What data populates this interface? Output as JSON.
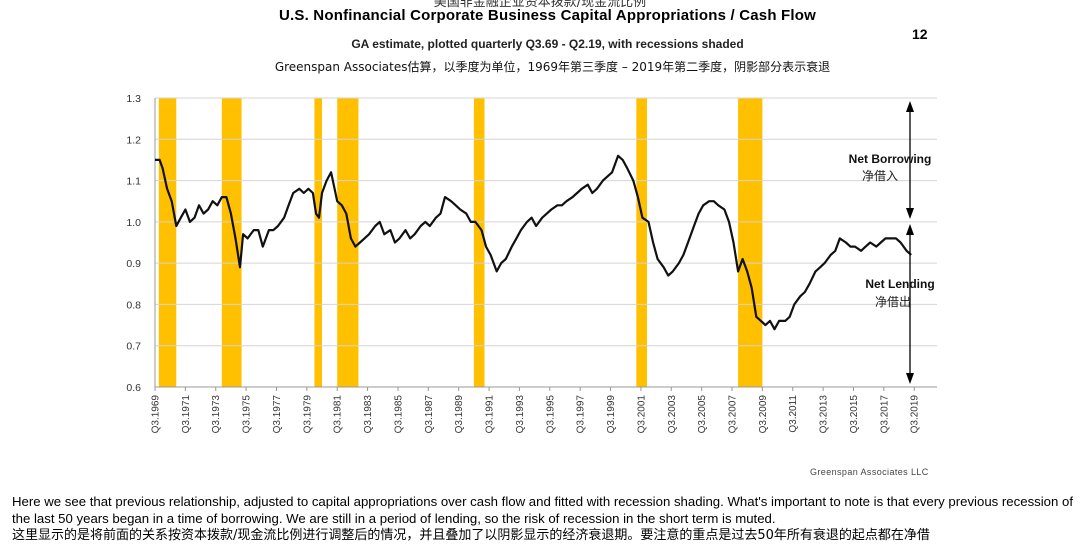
{
  "header": {
    "cn_title": "美国非金融企业资本拨款/现金流比例",
    "page_number": "12"
  },
  "footer": {
    "credit": "Greenspan Associates LLC",
    "caption": "Here we see that previous relationship, adjusted to capital appropriations over cash flow and fitted with recession shading. What's important to note is that every previous recession of the last 50 years began in a time of borrowing. We are still in a period of lending, so the risk of recession in the short term is muted.",
    "caption_cn": "这里显示的是将前面的关系按资本拨款/现金流比例进行调整后的情况，并且叠加了以阴影显示的经济衰退期。要注意的重点是过去50年所有衰退的起点都在净借"
  },
  "chart_data": {
    "type": "line",
    "title": "U.S. Nonfinancial Corporate Business Capital Appropriations / Cash Flow",
    "subtitle": "GA estimate, plotted quarterly Q3.69 - Q2.19, with recessions shaded",
    "subtitle_cn": "Greenspan Associates估算，以季度为单位，1969年第三季度 – 2019年第二季度，阴影部分表示衰退",
    "ylim": [
      0.6,
      1.3
    ],
    "yticks": [
      "0.6",
      "0.7",
      "0.8",
      "0.9",
      "1.0",
      "1.1",
      "1.2",
      "1.3"
    ],
    "xlim": [
      1969.5,
      2021.0
    ],
    "xticks": [
      "Q3.1969",
      "Q3.1971",
      "Q3.1973",
      "Q3.1975",
      "Q3.1977",
      "Q3.1979",
      "Q3.1981",
      "Q3.1983",
      "Q3.1985",
      "Q3.1987",
      "Q3.1989",
      "Q3.1991",
      "Q3.1993",
      "Q3.1995",
      "Q3.1997",
      "Q3.1999",
      "Q3.2001",
      "Q3.2003",
      "Q3.2005",
      "Q3.2007",
      "Q3.2009",
      "Q3.2011",
      "Q3.2013",
      "Q3.2015",
      "Q3.2017",
      "Q3.2019"
    ],
    "grid": true,
    "line_color": "#111111",
    "recession_color": "#FFC000",
    "recessions": [
      [
        1969.75,
        1970.9
      ],
      [
        1973.9,
        1975.2
      ],
      [
        1980.0,
        1980.5
      ],
      [
        1981.5,
        1982.9
      ],
      [
        1990.5,
        1991.2
      ],
      [
        2001.2,
        2001.9
      ],
      [
        2007.9,
        2009.5
      ]
    ],
    "annotations": {
      "net_borrowing": "Net Borrowing",
      "net_borrowing_cn": "净借入",
      "net_lending": "Net Lending",
      "net_lending_cn": "净借出"
    },
    "series": [
      {
        "x": [
          1969.5,
          1969.8,
          1970.0,
          1970.3,
          1970.6,
          1970.9,
          1971.2,
          1971.5,
          1971.8,
          1972.1,
          1972.4,
          1972.7,
          1973.0,
          1973.3,
          1973.6,
          1973.9,
          1974.2,
          1974.5,
          1974.8,
          1975.1,
          1975.3,
          1975.6,
          1976.0,
          1976.3,
          1976.6,
          1977.0,
          1977.3,
          1977.6,
          1978.0,
          1978.3,
          1978.6,
          1979.0,
          1979.3,
          1979.6,
          1979.9,
          1980.1,
          1980.3,
          1980.5,
          1980.8,
          1981.1,
          1981.5,
          1981.8,
          1982.1,
          1982.4,
          1982.7,
          1983.0,
          1983.3,
          1983.6,
          1984.0,
          1984.3,
          1984.6,
          1985.0,
          1985.3,
          1985.6,
          1986.0,
          1986.3,
          1986.6,
          1987.0,
          1987.3,
          1987.6,
          1988.0,
          1988.3,
          1988.6,
          1989.0,
          1989.3,
          1989.6,
          1990.0,
          1990.3,
          1990.6,
          1991.0,
          1991.3,
          1991.6,
          1992.0,
          1992.3,
          1992.6,
          1993.0,
          1993.3,
          1993.6,
          1994.0,
          1994.3,
          1994.6,
          1995.0,
          1995.3,
          1995.6,
          1996.0,
          1996.3,
          1996.6,
          1997.0,
          1997.3,
          1997.6,
          1998.0,
          1998.3,
          1998.6,
          1999.0,
          1999.3,
          1999.6,
          2000.0,
          2000.3,
          2000.6,
          2001.0,
          2001.3,
          2001.6,
          2002.0,
          2002.3,
          2002.6,
          2003.0,
          2003.3,
          2003.6,
          2004.0,
          2004.3,
          2004.6,
          2005.0,
          2005.3,
          2005.6,
          2006.0,
          2006.3,
          2006.6,
          2007.0,
          2007.3,
          2007.6,
          2007.9,
          2008.2,
          2008.5,
          2008.8,
          2009.1,
          2009.4,
          2009.7,
          2010.0,
          2010.3,
          2010.6,
          2011.0,
          2011.3,
          2011.6,
          2012.0,
          2012.3,
          2012.6,
          2013.0,
          2013.3,
          2013.6,
          2014.0,
          2014.3,
          2014.6,
          2015.0,
          2015.3,
          2015.6,
          2016.0,
          2016.3,
          2016.6,
          2017.0,
          2017.3,
          2017.6,
          2018.0,
          2018.3,
          2018.6,
          2019.0,
          2019.3
        ],
        "values": [
          1.15,
          1.15,
          1.13,
          1.08,
          1.05,
          0.99,
          1.01,
          1.03,
          1.0,
          1.01,
          1.04,
          1.02,
          1.03,
          1.05,
          1.04,
          1.06,
          1.06,
          1.02,
          0.96,
          0.89,
          0.97,
          0.96,
          0.98,
          0.98,
          0.94,
          0.98,
          0.98,
          0.99,
          1.01,
          1.04,
          1.07,
          1.08,
          1.07,
          1.08,
          1.07,
          1.02,
          1.01,
          1.07,
          1.1,
          1.12,
          1.05,
          1.04,
          1.02,
          0.96,
          0.94,
          0.95,
          0.96,
          0.97,
          0.99,
          1.0,
          0.97,
          0.98,
          0.95,
          0.96,
          0.98,
          0.96,
          0.97,
          0.99,
          1.0,
          0.99,
          1.01,
          1.02,
          1.06,
          1.05,
          1.04,
          1.03,
          1.02,
          1.0,
          1.0,
          0.98,
          0.94,
          0.92,
          0.88,
          0.9,
          0.91,
          0.94,
          0.96,
          0.98,
          1.0,
          1.01,
          0.99,
          1.01,
          1.02,
          1.03,
          1.04,
          1.04,
          1.05,
          1.06,
          1.07,
          1.08,
          1.09,
          1.07,
          1.08,
          1.1,
          1.11,
          1.12,
          1.16,
          1.15,
          1.13,
          1.1,
          1.06,
          1.01,
          1.0,
          0.95,
          0.91,
          0.89,
          0.87,
          0.88,
          0.9,
          0.92,
          0.95,
          0.99,
          1.02,
          1.04,
          1.05,
          1.05,
          1.04,
          1.03,
          1.0,
          0.95,
          0.88,
          0.91,
          0.88,
          0.84,
          0.77,
          0.76,
          0.75,
          0.76,
          0.74,
          0.76,
          0.76,
          0.77,
          0.8,
          0.82,
          0.83,
          0.85,
          0.88,
          0.89,
          0.9,
          0.92,
          0.93,
          0.96,
          0.95,
          0.94,
          0.94,
          0.93,
          0.94,
          0.95,
          0.94,
          0.95,
          0.96,
          0.96,
          0.96,
          0.95,
          0.93,
          0.92
        ]
      }
    ]
  }
}
